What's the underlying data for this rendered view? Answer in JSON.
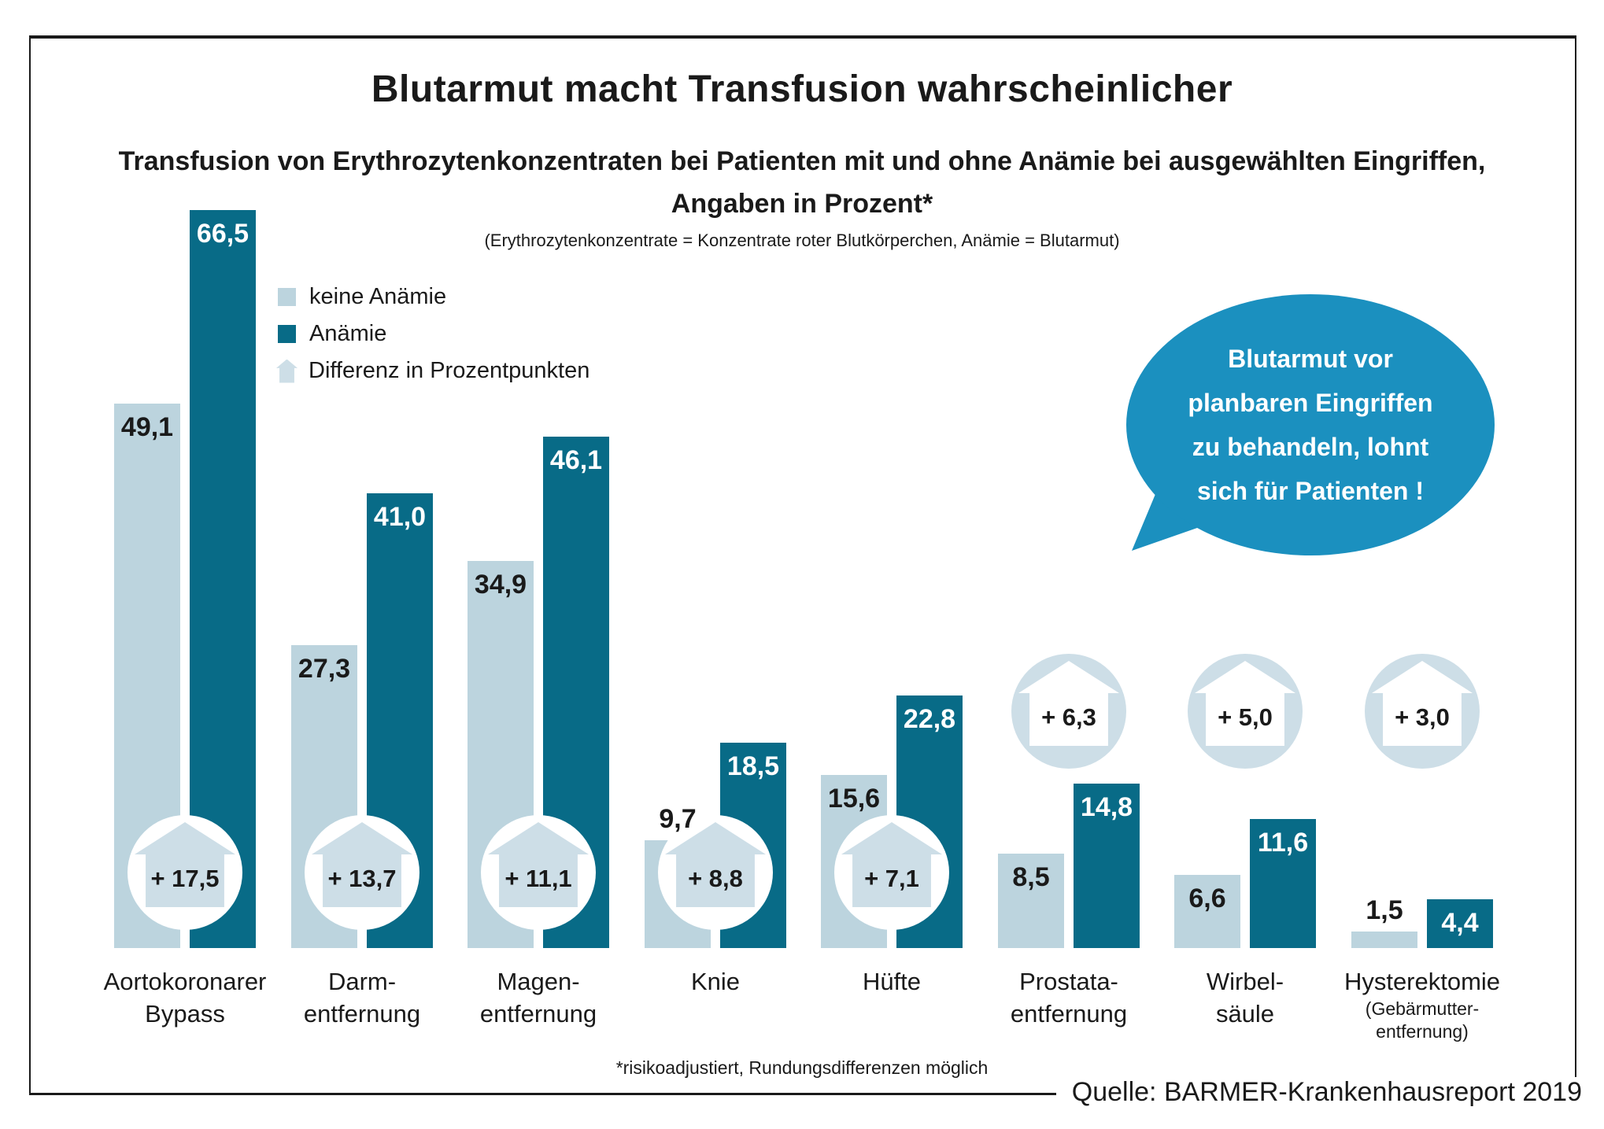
{
  "title": "Blutarmut macht Transfusion wahrscheinlicher",
  "subtitle_line1": "Transfusion von Erythrozytenkonzentraten bei Patienten mit und ohne Anämie bei ausgewählten Eingriffen,",
  "subtitle_line2": "Angaben in Prozent*",
  "note": "(Erythrozytenkonzentrate = Konzentrate roter Blutkörperchen, Anämie = Blutarmut)",
  "legend": {
    "keine": "keine Anämie",
    "anaemie": "Anämie",
    "diff": "Differenz in Prozentpunkten"
  },
  "bubble": {
    "lines": [
      "Blutarmut vor",
      "planbaren Eingriffen",
      "zu behandeln, lohnt",
      "sich für Patienten !"
    ]
  },
  "footnote": "*risikoadjustiert, Rundungsdifferenzen möglich",
  "source": "Quelle: BARMER-Krankenhausreport 2019",
  "colors": {
    "light": "#bcd4de",
    "light2": "#cddee7",
    "dark": "#086b87",
    "bubble": "#1b90bf",
    "text": "#1a1a1a"
  },
  "chart_data": {
    "type": "bar",
    "title": "Transfusion von Erythrozytenkonzentraten bei Patienten mit und ohne Anämie bei ausgewählten Eingriffen, Angaben in Prozent",
    "series_names": [
      "keine Anämie",
      "Anämie"
    ],
    "ylabel": "Prozent",
    "ylim": [
      0,
      70
    ],
    "grid": false,
    "legend_position": "upper-left",
    "groups": [
      {
        "label_lines": [
          "Aortokoronarer",
          "Bypass"
        ],
        "values": {
          "keine": 49.1,
          "anaemie": 66.5
        },
        "labels": {
          "keine": "49,1",
          "anaemie": "66,5"
        },
        "diff": "+ 17,5",
        "diff_value": 17.5,
        "diff_style": "overlay"
      },
      {
        "label_lines": [
          "Darm-",
          "entfernung"
        ],
        "values": {
          "keine": 27.3,
          "anaemie": 41.0
        },
        "labels": {
          "keine": "27,3",
          "anaemie": "41,0"
        },
        "diff": "+ 13,7",
        "diff_value": 13.7,
        "diff_style": "overlay"
      },
      {
        "label_lines": [
          "Magen-",
          "entfernung"
        ],
        "values": {
          "keine": 34.9,
          "anaemie": 46.1
        },
        "labels": {
          "keine": "34,9",
          "anaemie": "46,1"
        },
        "diff": "+ 11,1",
        "diff_value": 11.1,
        "diff_style": "overlay"
      },
      {
        "label_lines": [
          "Knie"
        ],
        "values": {
          "keine": 9.7,
          "anaemie": 18.5
        },
        "labels": {
          "keine": "9,7",
          "anaemie": "18,5"
        },
        "diff": "+ 8,8",
        "diff_value": 8.8,
        "diff_style": "overlay",
        "label_above": {
          "keine": true
        }
      },
      {
        "label_lines": [
          "Hüfte"
        ],
        "values": {
          "keine": 15.6,
          "anaemie": 22.8
        },
        "labels": {
          "keine": "15,6",
          "anaemie": "22,8"
        },
        "diff": "+ 7,1",
        "diff_value": 7.1,
        "diff_style": "overlay"
      },
      {
        "label_lines": [
          "Prostata-",
          "entfernung"
        ],
        "values": {
          "keine": 8.5,
          "anaemie": 14.8
        },
        "labels": {
          "keine": "8,5",
          "anaemie": "14,8"
        },
        "diff": "+ 6,3",
        "diff_value": 6.3,
        "diff_style": "floating"
      },
      {
        "label_lines": [
          "Wirbel-",
          "säule"
        ],
        "values": {
          "keine": 6.6,
          "anaemie": 11.6
        },
        "labels": {
          "keine": "6,6",
          "anaemie": "11,6"
        },
        "diff": "+ 5,0",
        "diff_value": 5.0,
        "diff_style": "floating"
      },
      {
        "label_lines": [
          "Hysterektomie"
        ],
        "sublabel_lines": [
          "(Gebärmutter-",
          "entfernung)"
        ],
        "values": {
          "keine": 1.5,
          "anaemie": 4.4
        },
        "labels": {
          "keine": "1,5",
          "anaemie": "4,4"
        },
        "diff": "+ 3,0",
        "diff_value": 3.0,
        "diff_style": "floating",
        "label_above": {
          "keine": true
        }
      }
    ]
  }
}
